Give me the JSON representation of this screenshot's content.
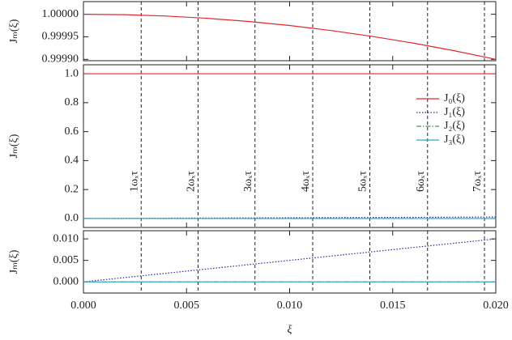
{
  "chart_data": [
    {
      "type": "line",
      "ylabel": "Jₘ(ξ)",
      "x": [
        0,
        0.002,
        0.004,
        0.006,
        0.008,
        0.01,
        0.012,
        0.014,
        0.016,
        0.018,
        0.02
      ],
      "xlim": [
        0,
        0.02
      ],
      "series": [
        {
          "name": "J₀(ξ)",
          "color": "#e0282a",
          "style": "solid",
          "values": [
            1,
            0.999999,
            0.999996,
            0.999991,
            0.999984,
            0.999975,
            0.999964,
            0.999951,
            0.999936,
            0.999919,
            0.9999
          ]
        }
      ],
      "ylim": [
        0.999897,
        1.000028
      ],
      "yticks": [
        {
          "value": 1,
          "label": "1.00000"
        },
        {
          "value": 0.99995,
          "label": "0.99995"
        },
        {
          "value": 0.9999,
          "label": "0.99990"
        }
      ]
    },
    {
      "type": "line",
      "ylabel": "Jₘ(ξ)",
      "x": [
        0,
        0.002,
        0.004,
        0.006,
        0.008,
        0.01,
        0.012,
        0.014,
        0.016,
        0.018,
        0.02
      ],
      "xlim": [
        0,
        0.02
      ],
      "series": [
        {
          "name": "J₀(ξ)",
          "color": "#e0282a",
          "style": "solid",
          "values": [
            1,
            1,
            1,
            1,
            1,
            1,
            1,
            1,
            1,
            1,
            1
          ]
        },
        {
          "name": "J₁(ξ)",
          "color": "#2a2a9a",
          "style": "dotted",
          "values": [
            0,
            0.001,
            0.002,
            0.003,
            0.004,
            0.005,
            0.006,
            0.007,
            0.008,
            0.009,
            0.01
          ]
        },
        {
          "name": "J₂(ξ)",
          "color": "#3a9a5a",
          "style": "dashdot",
          "values": [
            0,
            0,
            0,
            0,
            0,
            0,
            0,
            0,
            0,
            0,
            0
          ]
        },
        {
          "name": "J₃(ξ)",
          "color": "#2aa8c8",
          "style": "solid",
          "values": [
            0,
            0,
            0,
            0,
            0,
            0,
            0,
            0,
            0,
            0,
            0
          ]
        }
      ],
      "ylim": [
        -0.062,
        1.062
      ],
      "yticks": [
        {
          "value": 0,
          "label": "0.0"
        },
        {
          "value": 0.2,
          "label": "0.2"
        },
        {
          "value": 0.4,
          "label": "0.4"
        },
        {
          "value": 0.6,
          "label": "0.6"
        },
        {
          "value": 0.8,
          "label": "0.8"
        },
        {
          "value": 1,
          "label": "1.0"
        }
      ],
      "vlines": [
        {
          "value": 0.0028,
          "label": "1ωₓτ"
        },
        {
          "value": 0.00556,
          "label": "2ωₓτ"
        },
        {
          "value": 0.00832,
          "label": "3ωₓτ"
        },
        {
          "value": 0.01112,
          "label": "4ωₓτ"
        },
        {
          "value": 0.01389,
          "label": "5ωₓτ"
        },
        {
          "value": 0.01669,
          "label": "6ωₓτ"
        },
        {
          "value": 0.01945,
          "label": "7ωₓτ"
        }
      ],
      "legend": "upper right"
    },
    {
      "type": "line",
      "ylabel": "Jₘ(ξ)",
      "xlabel": "ξ",
      "x": [
        0,
        0.002,
        0.004,
        0.006,
        0.008,
        0.01,
        0.012,
        0.014,
        0.016,
        0.018,
        0.02
      ],
      "xlim": [
        0,
        0.02
      ],
      "series": [
        {
          "name": "J₁(ξ)",
          "color": "#2a2a9a",
          "style": "dotted",
          "values": [
            0,
            0.001,
            0.002,
            0.003,
            0.004,
            0.005,
            0.006,
            0.007,
            0.008,
            0.009,
            0.01
          ]
        },
        {
          "name": "J₂(ξ)",
          "color": "#3a9a5a",
          "style": "dashdot",
          "values": [
            0,
            0,
            0,
            0,
            0,
            0,
            0,
            0,
            0,
            0,
            0
          ]
        },
        {
          "name": "J₃(ξ)",
          "color": "#2aa8c8",
          "style": "solid",
          "values": [
            0,
            0,
            0,
            0,
            0,
            0,
            0,
            0,
            0,
            0,
            0
          ]
        }
      ],
      "ylim": [
        -0.0026,
        0.0119
      ],
      "yticks": [
        {
          "value": 0,
          "label": "0.000"
        },
        {
          "value": 0.005,
          "label": "0.005"
        },
        {
          "value": 0.01,
          "label": "0.010"
        }
      ],
      "xticks": [
        {
          "value": 0,
          "label": "0.000"
        },
        {
          "value": 0.005,
          "label": "0.005"
        },
        {
          "value": 0.01,
          "label": "0.010"
        },
        {
          "value": 0.015,
          "label": "0.015"
        },
        {
          "value": 0.02,
          "label": "0.020"
        }
      ]
    }
  ]
}
